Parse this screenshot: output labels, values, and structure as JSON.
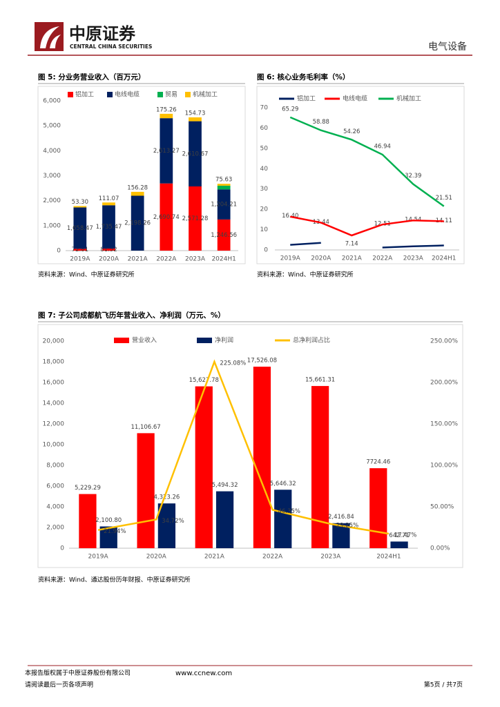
{
  "header": {
    "logo_cn": "中原证券",
    "logo_en": "CENTRAL CHINA SECURITIES",
    "section": "电气设备"
  },
  "footer": {
    "copyright": "本报告版权属于中原证券股份有限公司",
    "website": "www.ccnew.com",
    "notice": "请阅读最后一页各项声明",
    "page": "第5页 / 共7页"
  },
  "chart_data": [
    {
      "type": "stacked_bar",
      "title": "图 5: 分业务营业收入（百万元）",
      "source": "资料来源：Wind、中原证券研究所",
      "categories": [
        "2019A",
        "2020A",
        "2021A",
        "2022A",
        "2023A",
        "2024H1"
      ],
      "ylim": [
        0,
        6000
      ],
      "yticks": [
        0,
        {
          "value": 1000,
          "label": "1,000"
        },
        {
          "value": 2000,
          "label": "2,000"
        },
        {
          "value": 3000,
          "label": "3,000"
        },
        {
          "value": 4000,
          "label": "4,000"
        },
        {
          "value": 5000,
          "label": "5,000"
        },
        {
          "value": 6000,
          "label": "6,000"
        }
      ],
      "grid": false,
      "series": [
        {
          "name": "铝加工",
          "color": "#ff0000",
          "values": [
            72.81,
            81.52,
            null,
            2690.74,
            2571.28,
            1246.56
          ],
          "value_labels": [
            "72.81",
            "81.52",
            null,
            "2,690.74",
            "2,571.28",
            "1,246.56"
          ]
        },
        {
          "name": "电线电缆",
          "color": "#002060",
          "values": [
            1658.47,
            1735.47,
            2198.26,
            2613.27,
            2610.67,
            1204.21
          ],
          "value_labels": [
            "1,658.47",
            "1,735.47",
            "2,198.26",
            "2,613.27",
            "2,610.67",
            "1,204.21"
          ]
        },
        {
          "name": "贸易",
          "color": "#00b050",
          "values": [
            null,
            null,
            null,
            null,
            null,
            150
          ],
          "value_labels": [
            null,
            null,
            null,
            null,
            null,
            null
          ]
        },
        {
          "name": "机械加工",
          "color": "#ffc000",
          "values": [
            53.3,
            111.07,
            156.28,
            175.26,
            154.73,
            75.63
          ],
          "value_labels": [
            "53.30",
            "111.07",
            "156.28",
            "175.26",
            "154.73",
            "75.63"
          ]
        }
      ]
    },
    {
      "type": "line",
      "title": "图 6: 核心业务毛利率（%）",
      "source": "资料来源：Wind、中原证券研究所",
      "categories": [
        "2019A",
        "2020A",
        "2021A",
        "2022A",
        "2023A",
        "2024H1"
      ],
      "ylim": [
        0,
        70
      ],
      "yticks": [
        0,
        10,
        20,
        30,
        40,
        50,
        60,
        70
      ],
      "grid": false,
      "series": [
        {
          "name": "铝加工",
          "color": "#002060",
          "values": [
            2.5,
            3.5,
            null,
            1.2,
            1.8,
            2.2
          ]
        },
        {
          "name": "电线电缆",
          "color": "#ff0000",
          "values": [
            16.4,
            13.44,
            7.14,
            12.51,
            14.54,
            14.11
          ],
          "value_labels": [
            "16.40",
            "13.44",
            "7.14",
            "12.51",
            "14.54",
            "14.11"
          ]
        },
        {
          "name": "机械加工",
          "color": "#00b050",
          "values": [
            65.29,
            58.88,
            54.26,
            46.94,
            32.39,
            21.51
          ]
        }
      ]
    },
    {
      "type": "bar_line",
      "title": "图 7: 子公司成都航飞历年营业收入、净利润（万元、%）",
      "source": "资料来源：Wind、通达股份历年财报、中原证券研究所",
      "categories": [
        "2019A",
        "2020A",
        "2021A",
        "2022A",
        "2023A",
        "2024H1"
      ],
      "ylim": [
        0,
        20000
      ],
      "yticks": [
        0,
        {
          "value": 2000,
          "label": "2,000"
        },
        {
          "value": 4000,
          "label": "4,000"
        },
        {
          "value": 6000,
          "label": "6,000"
        },
        {
          "value": 8000,
          "label": "8,000"
        },
        {
          "value": 10000,
          "label": "10,000"
        },
        {
          "value": 12000,
          "label": "12,000"
        },
        {
          "value": 14000,
          "label": "14,000"
        },
        {
          "value": 16000,
          "label": "16,000"
        },
        {
          "value": 18000,
          "label": "18,000"
        },
        {
          "value": 20000,
          "label": "20,000"
        }
      ],
      "y2lim": [
        0,
        250
      ],
      "y2ticks": [
        {
          "value": 0,
          "label": "0.00%"
        },
        {
          "value": 50,
          "label": "50.00%"
        },
        {
          "value": 100,
          "label": "100.00%"
        },
        {
          "value": 150,
          "label": "150.00%"
        },
        {
          "value": 200,
          "label": "200.00%"
        },
        {
          "value": 250,
          "label": "250.00%"
        }
      ],
      "grid": false,
      "series": [
        {
          "name": "营业收入",
          "color": "#ff0000",
          "values": [
            5229.29,
            11106.67,
            15627.78,
            17526.08,
            15661.31,
            7724.46
          ],
          "value_labels": [
            "5,229.29",
            "11,106.67",
            "15,627.78",
            "17,526.08",
            "15,661.31",
            "7724.46"
          ]
        },
        {
          "name": "净利润",
          "color": "#002060",
          "values": [
            2100.8,
            4323.26,
            5494.32,
            5646.32,
            2416.84,
            642.71
          ],
          "value_labels": [
            "2,100.80",
            "4,323.26",
            "5,494.32",
            "5,646.32",
            "2,416.84",
            "642.71"
          ]
        },
        {
          "name": "总净利润占比",
          "color": "#ffc000",
          "axis": "y2",
          "values": [
            21.94,
            34.72,
            225.08,
            46.35,
            29.25,
            17.47
          ],
          "value_labels": [
            "21.94%",
            "34.72%",
            "225.08%",
            "46.35%",
            "29.25%",
            "17.47%"
          ]
        }
      ]
    }
  ]
}
